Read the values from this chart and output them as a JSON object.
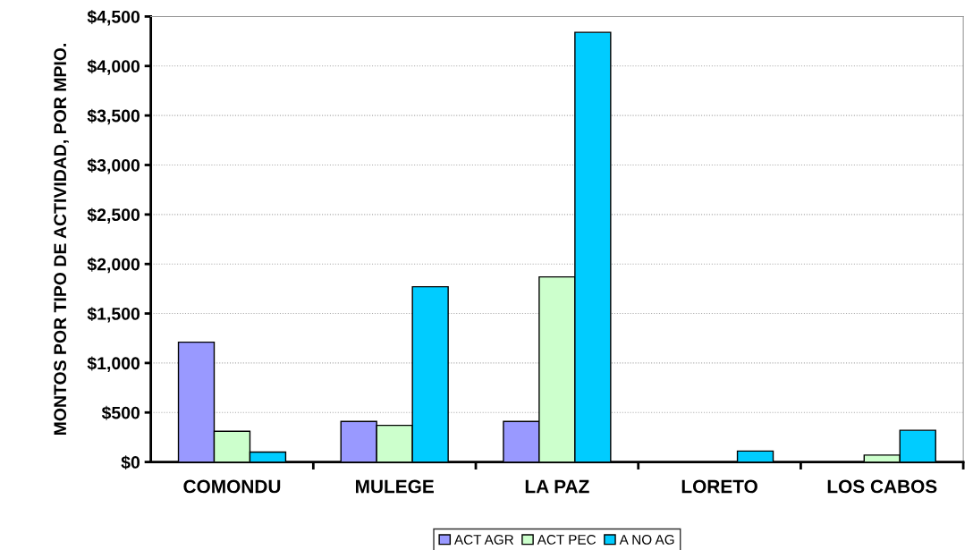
{
  "chart_data": {
    "type": "bar",
    "ylabel": "MONTOS POR TIPO DE ACTIVIDAD, POR MPIO.",
    "categories": [
      "COMONDU",
      "MULEGE",
      "LA PAZ",
      "LORETO",
      "LOS CABOS"
    ],
    "series": [
      {
        "name": "ACT AGR",
        "color": "#9999ff",
        "values": [
          1210,
          410,
          410,
          0,
          0
        ]
      },
      {
        "name": "ACT PEC",
        "color": "#ccffcc",
        "values": [
          310,
          370,
          1870,
          0,
          70
        ]
      },
      {
        "name": "A NO AG",
        "color": "#00ccff",
        "values": [
          100,
          1770,
          4340,
          110,
          320
        ]
      }
    ],
    "ylim": [
      0,
      4500
    ],
    "yticks": [
      {
        "value": 0,
        "label": "$0"
      },
      {
        "value": 500,
        "label": "$500"
      },
      {
        "value": 1000,
        "label": "$1,000"
      },
      {
        "value": 1500,
        "label": "$1,500"
      },
      {
        "value": 2000,
        "label": "$2,000"
      },
      {
        "value": 2500,
        "label": "$2,500"
      },
      {
        "value": 3000,
        "label": "$3,000"
      },
      {
        "value": 3500,
        "label": "$3,500"
      },
      {
        "value": 4000,
        "label": "$4,000"
      },
      {
        "value": 4500,
        "label": "$4,500"
      }
    ],
    "grid": "y",
    "legend": "bottom"
  }
}
